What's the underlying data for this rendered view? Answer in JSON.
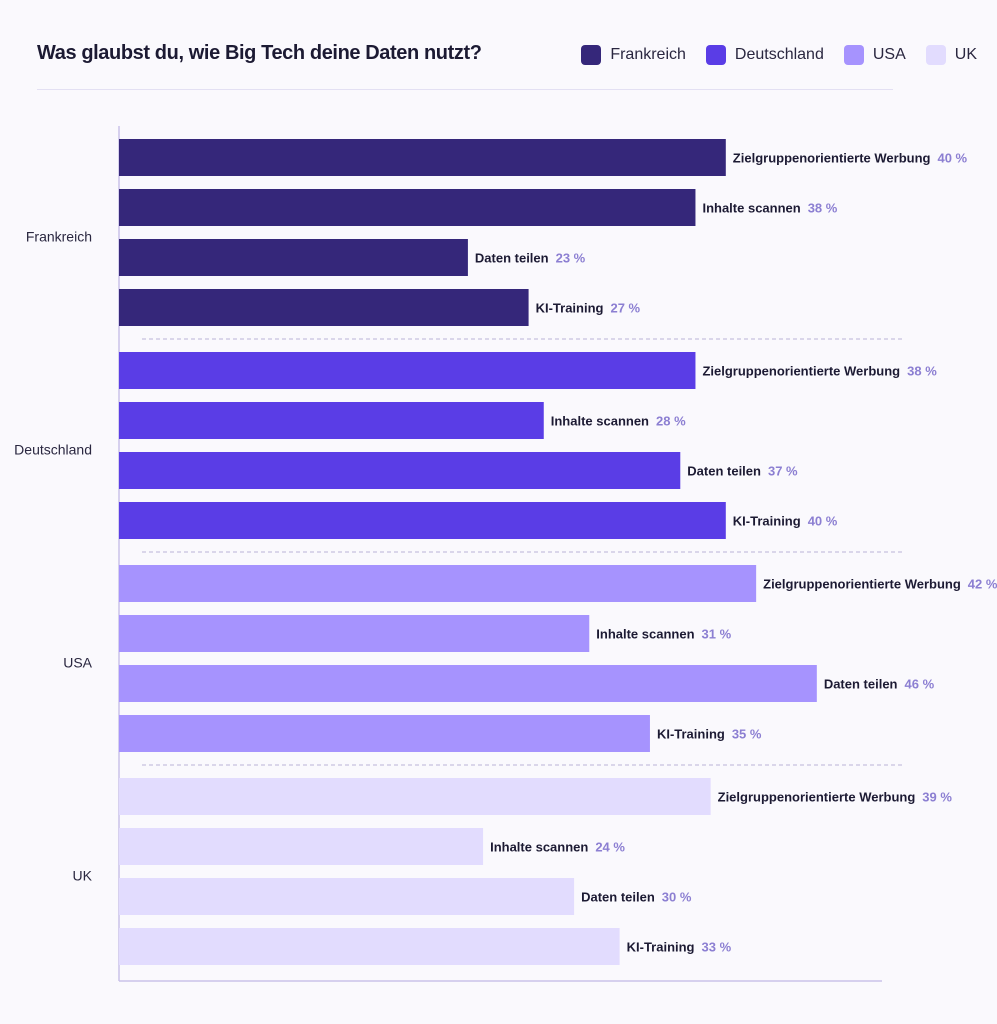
{
  "title": "Was glaubst du, wie Big Tech deine Daten nutzt?",
  "legend": [
    {
      "label": "Frankreich",
      "color": "#35277a"
    },
    {
      "label": "Deutschland",
      "color": "#5a3de6"
    },
    {
      "label": "USA",
      "color": "#a693fe"
    },
    {
      "label": "UK",
      "color": "#e2dcfe"
    }
  ],
  "chart_data": {
    "type": "bar",
    "orientation": "horizontal",
    "title": "Was glaubst du, wie Big Tech deine Daten nutzt?",
    "unit": "%",
    "xlim": [
      0,
      50
    ],
    "groups": [
      {
        "name": "Frankreich",
        "color": "#35277a",
        "bars": [
          {
            "label": "Zielgruppenorientierte Werbung",
            "value": 40,
            "value_label": "40 %"
          },
          {
            "label": "Inhalte scannen",
            "value": 38,
            "value_label": "38 %"
          },
          {
            "label": "Daten teilen",
            "value": 23,
            "value_label": "23 %"
          },
          {
            "label": "KI-Training",
            "value": 27,
            "value_label": "27 %"
          }
        ]
      },
      {
        "name": "Deutschland",
        "color": "#5a3de6",
        "bars": [
          {
            "label": "Zielgruppenorientierte Werbung",
            "value": 38,
            "value_label": "38 %"
          },
          {
            "label": "Inhalte scannen",
            "value": 28,
            "value_label": "28 %"
          },
          {
            "label": "Daten teilen",
            "value": 37,
            "value_label": "37 %"
          },
          {
            "label": "KI-Training",
            "value": 40,
            "value_label": "40 %"
          }
        ]
      },
      {
        "name": "USA",
        "color": "#a693fe",
        "bars": [
          {
            "label": "Zielgruppenorientierte Werbung",
            "value": 42,
            "value_label": "42 %"
          },
          {
            "label": "Inhalte scannen",
            "value": 31,
            "value_label": "31 %"
          },
          {
            "label": "Daten teilen",
            "value": 46,
            "value_label": "46 %"
          },
          {
            "label": "KI-Training",
            "value": 35,
            "value_label": "35 %"
          }
        ]
      },
      {
        "name": "UK",
        "color": "#e2dcfe",
        "bars": [
          {
            "label": "Zielgruppenorientierte Werbung",
            "value": 39,
            "value_label": "39 %"
          },
          {
            "label": "Inhalte scannen",
            "value": 24,
            "value_label": "24 %"
          },
          {
            "label": "Daten teilen",
            "value": 30,
            "value_label": "30 %"
          },
          {
            "label": "KI-Training",
            "value": 33,
            "value_label": "33 %"
          }
        ]
      }
    ]
  }
}
